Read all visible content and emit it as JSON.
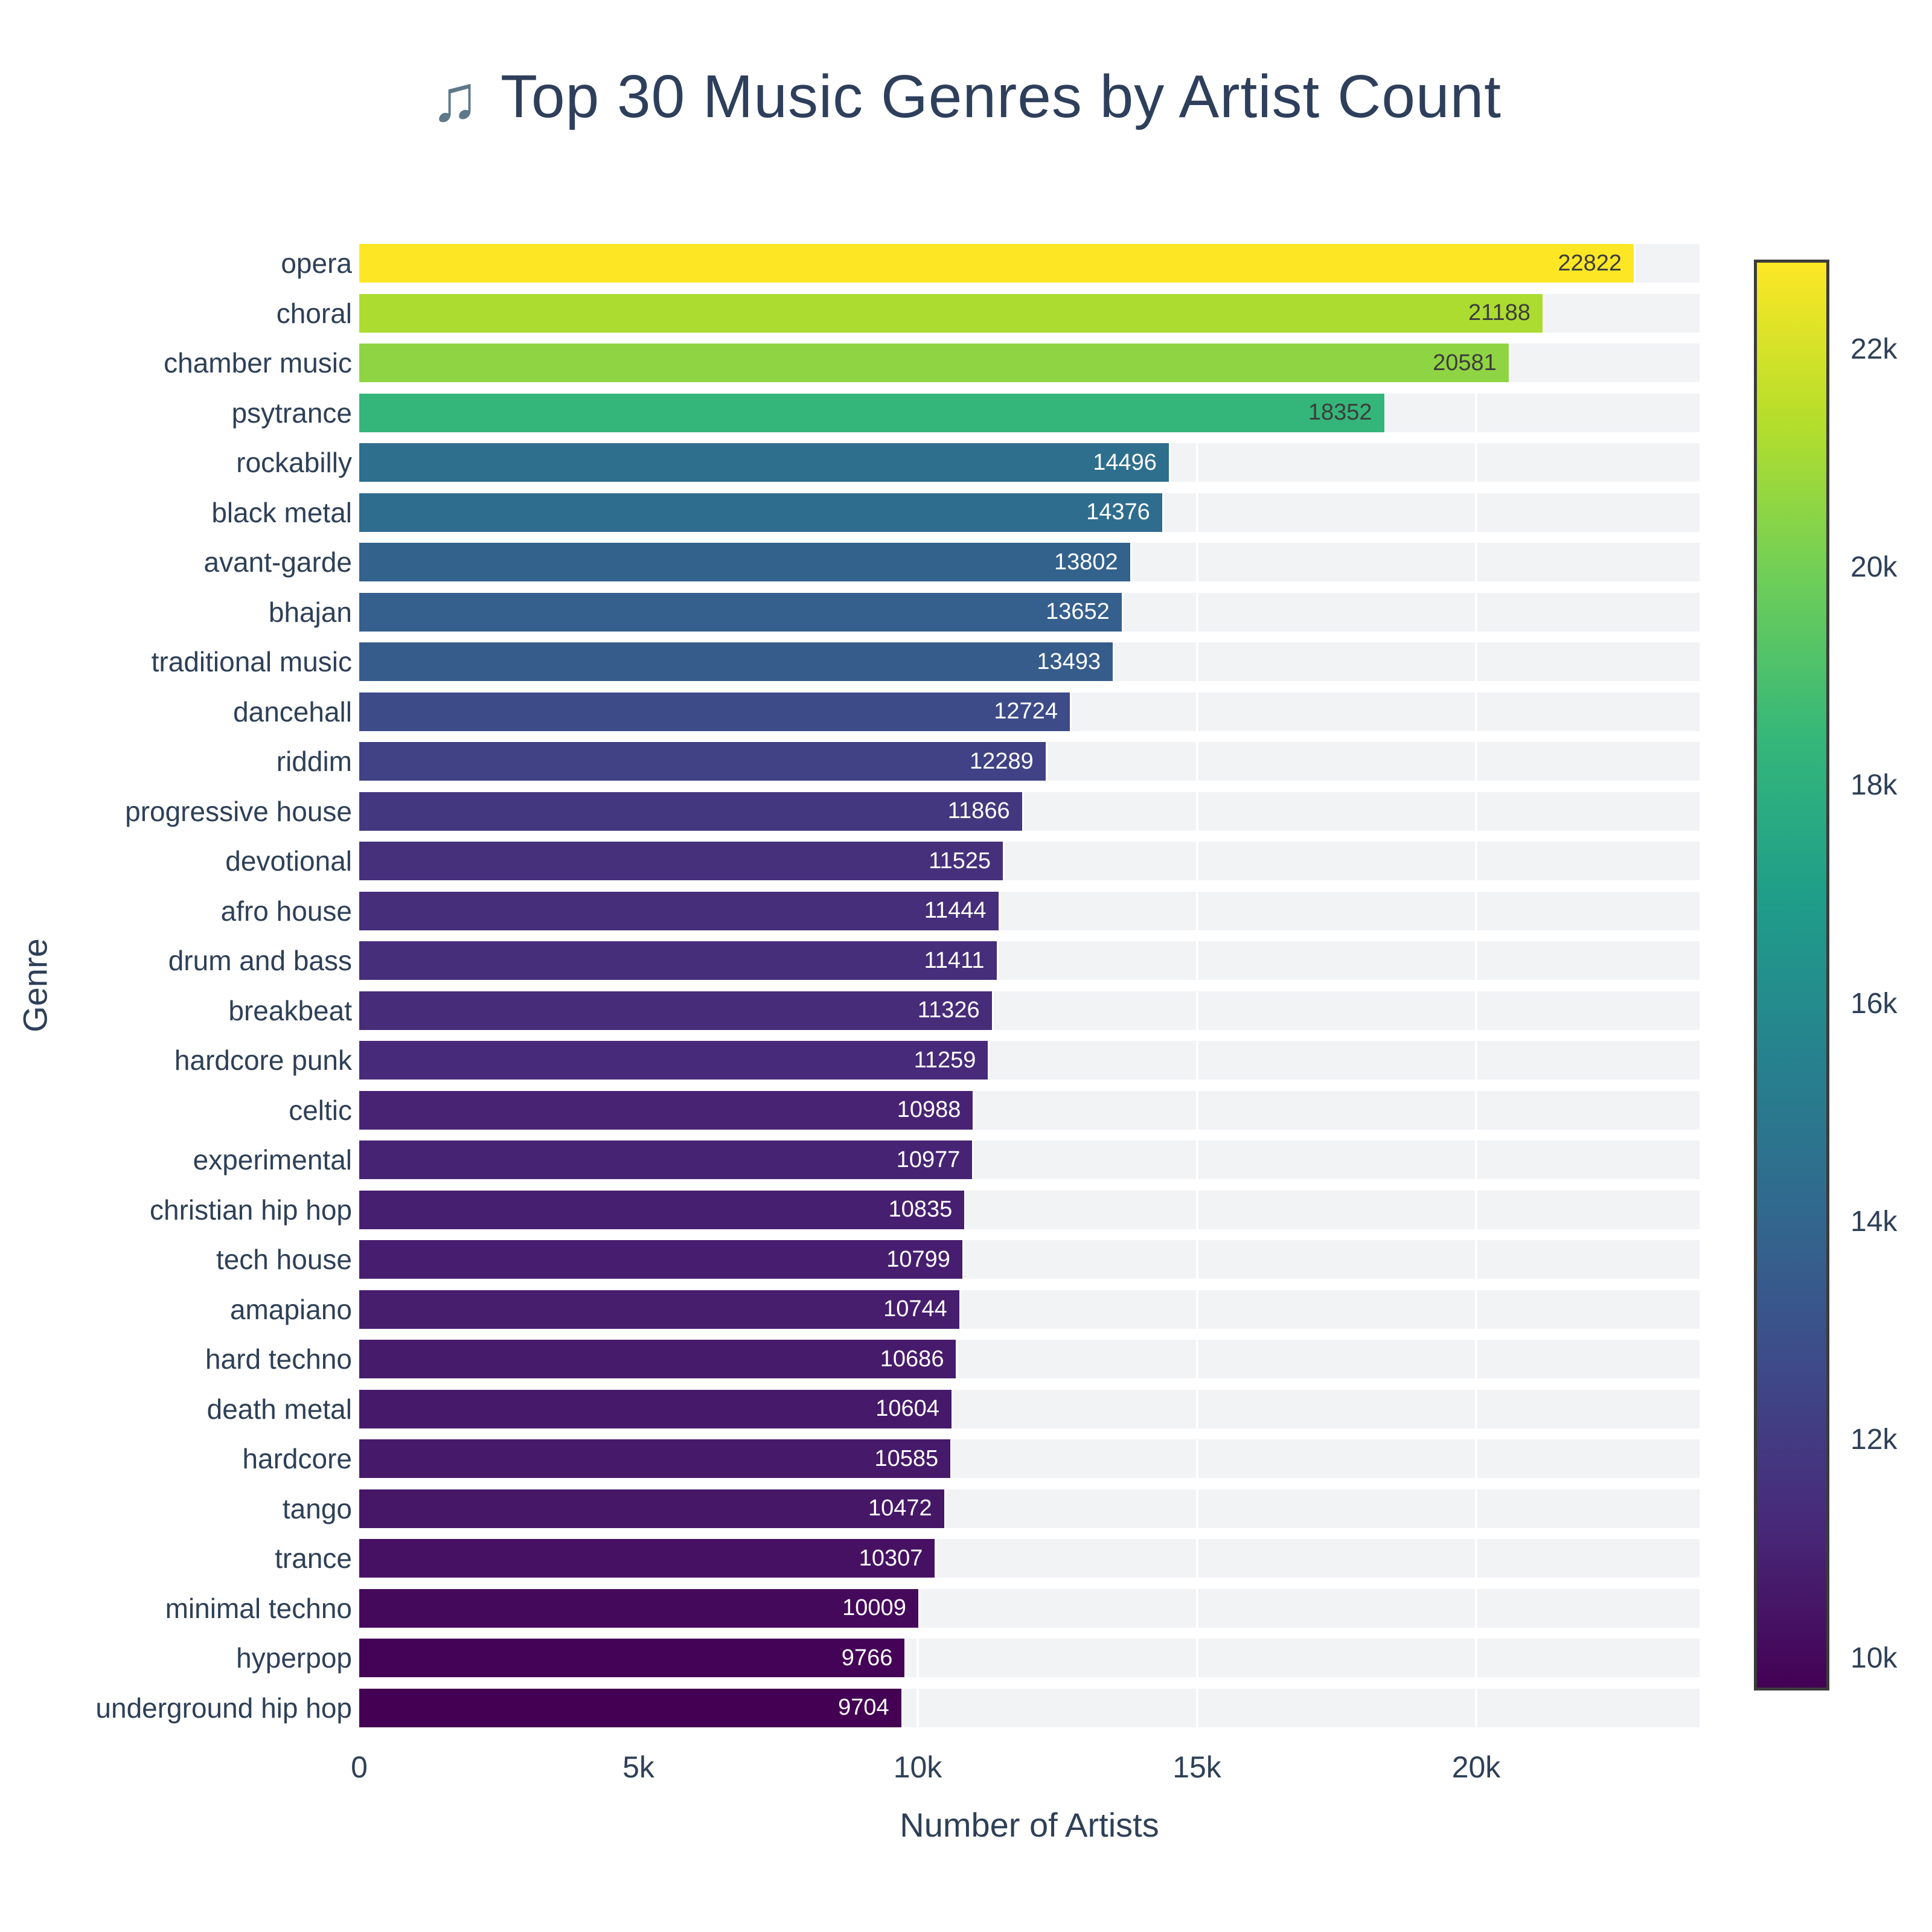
{
  "title": {
    "icon": "♫",
    "text": "Top 30 Music Genres by Artist Count"
  },
  "chart_data": {
    "type": "bar",
    "orientation": "horizontal",
    "title": "🎵 Top 30 Music Genres by Artist Count",
    "xlabel": "Number of Artists",
    "ylabel": "Genre",
    "xlim": [
      0,
      24000
    ],
    "grid": true,
    "categories": [
      "opera",
      "choral",
      "chamber music",
      "psytrance",
      "rockabilly",
      "black metal",
      "avant-garde",
      "bhajan",
      "traditional music",
      "dancehall",
      "riddim",
      "progressive house",
      "devotional",
      "afro house",
      "drum and bass",
      "breakbeat",
      "hardcore punk",
      "celtic",
      "experimental",
      "christian hip hop",
      "tech house",
      "amapiano",
      "hard techno",
      "death metal",
      "hardcore",
      "tango",
      "trance",
      "minimal techno",
      "hyperpop",
      "underground hip hop"
    ],
    "values": [
      22822,
      21188,
      20581,
      18352,
      14496,
      14376,
      13802,
      13652,
      13493,
      12724,
      12289,
      11866,
      11525,
      11444,
      11411,
      11326,
      11259,
      10988,
      10977,
      10835,
      10799,
      10744,
      10686,
      10604,
      10585,
      10472,
      10307,
      10009,
      9766,
      9704
    ],
    "bar_value_labels_shown": true,
    "x_ticks": [
      {
        "value": 0,
        "label": "0"
      },
      {
        "value": 5000,
        "label": "5k"
      },
      {
        "value": 10000,
        "label": "10k"
      },
      {
        "value": 15000,
        "label": "15k"
      },
      {
        "value": 20000,
        "label": "20k"
      }
    ],
    "colorscale": "viridis",
    "color_min": 9704,
    "color_max": 22822,
    "colorbar_ticks": [
      {
        "value": 22000,
        "label": "22k"
      },
      {
        "value": 20000,
        "label": "20k"
      },
      {
        "value": 18000,
        "label": "18k"
      },
      {
        "value": 16000,
        "label": "16k"
      },
      {
        "value": 14000,
        "label": "14k"
      },
      {
        "value": 12000,
        "label": "12k"
      },
      {
        "value": 10000,
        "label": "10k"
      }
    ],
    "legend": "none"
  },
  "colors": {
    "background": "#ffffff",
    "title_text": "#2e3f5c",
    "title_icon": "#5e7889",
    "axis_text": "#2e4057",
    "row_band": "#f2f3f5",
    "gridline": "#ffffff",
    "value_label_on_dark": "#ffffff",
    "value_label_on_light": "#3d3d3d",
    "colorbar_border": "#3b3b3b",
    "viridis": [
      "#440154",
      "#482878",
      "#3e4989",
      "#31688e",
      "#26828e",
      "#1f9e89",
      "#35b779",
      "#6ece58",
      "#b5de2b",
      "#fde725"
    ]
  }
}
